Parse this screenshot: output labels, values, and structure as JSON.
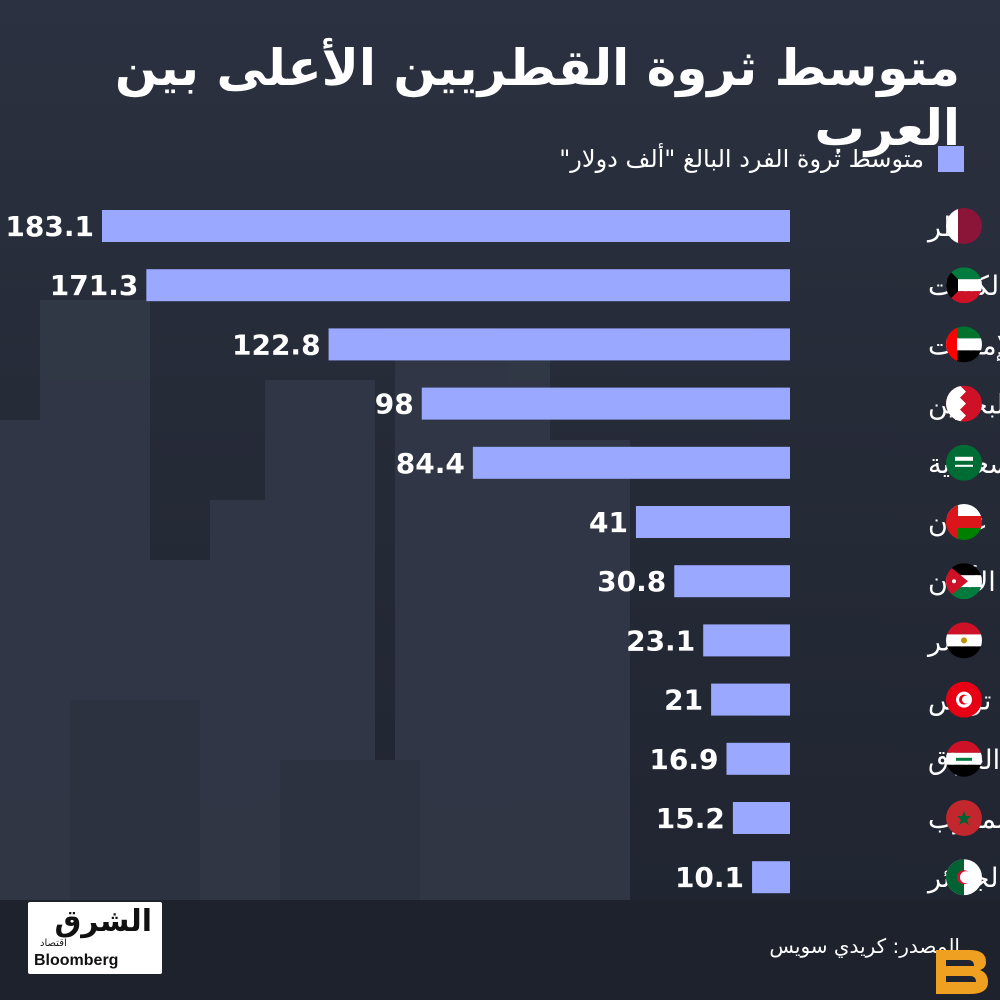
{
  "title": "متوسط ثروة القطريين الأعلى بين العرب",
  "legend_label": "متوسط ثروة الفرد البالغ \"ألف دولار\"",
  "source": "المصدر: كريدي سويس",
  "logo": {
    "main": "الشرق",
    "sub": "اقتصاد",
    "brand": "Bloomberg"
  },
  "colors": {
    "bar": "#9aa8ff",
    "background": "#262b38",
    "text": "#ffffff"
  },
  "chart_data": {
    "type": "bar",
    "orientation": "horizontal",
    "categories": [
      "قطر",
      "الكويت",
      "الإمارات",
      "البحرين",
      "السعودية",
      "عمان",
      "الأردن",
      "مصر",
      "تونس",
      "العراق",
      "المغرب",
      "الجزائر"
    ],
    "values": [
      183.1,
      171.3,
      122.8,
      98,
      84.4,
      41,
      30.8,
      23.1,
      21,
      16.9,
      15.2,
      10.1
    ],
    "labels": [
      "183.1",
      "171.3",
      "122.8",
      "98",
      "84.4",
      "41",
      "30.8",
      "23.1",
      "21",
      "16.9",
      "15.2",
      "10.1"
    ],
    "flags": [
      "qatar-flag-icon",
      "kuwait-flag-icon",
      "uae-flag-icon",
      "bahrain-flag-icon",
      "saudi-flag-icon",
      "oman-flag-icon",
      "jordan-flag-icon",
      "egypt-flag-icon",
      "tunisia-flag-icon",
      "iraq-flag-icon",
      "morocco-flag-icon",
      "algeria-flag-icon"
    ],
    "series": [
      {
        "name": "متوسط ثروة الفرد البالغ \"ألف دولار\"",
        "values": [
          183.1,
          171.3,
          122.8,
          98,
          84.4,
          41,
          30.8,
          23.1,
          21,
          16.9,
          15.2,
          10.1
        ]
      }
    ],
    "bar_direction": "right-to-left",
    "grid": false,
    "legend_position": "top-right"
  }
}
